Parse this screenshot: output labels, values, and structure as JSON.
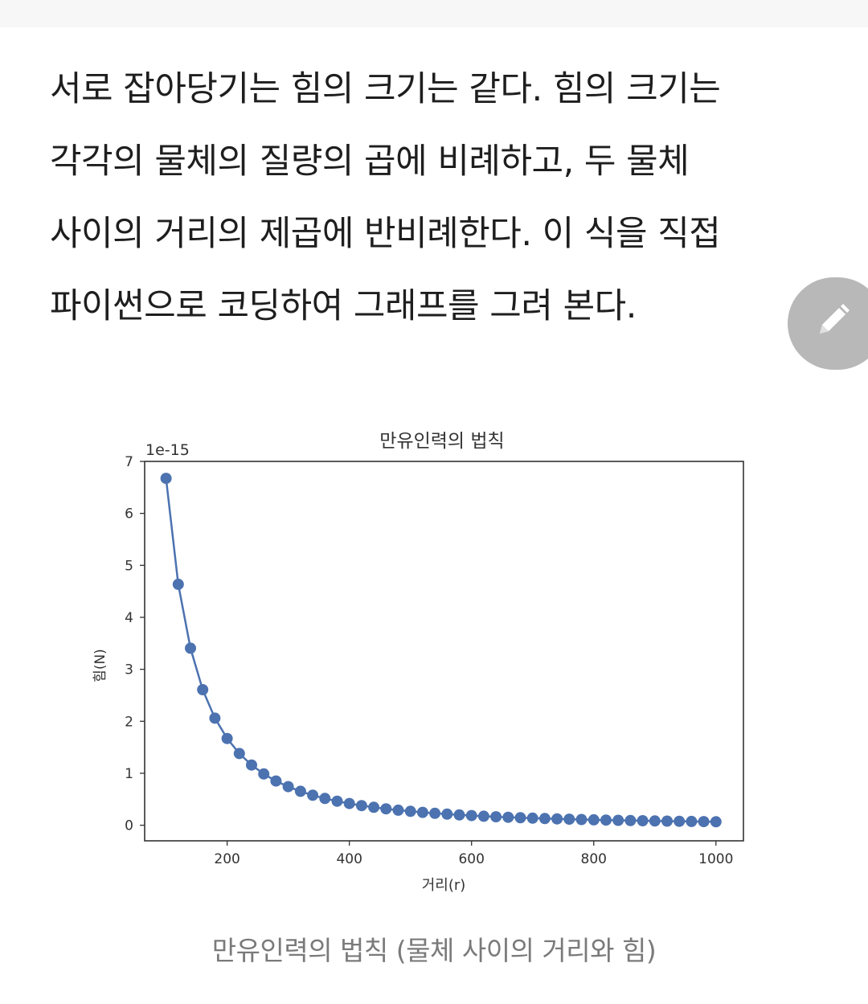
{
  "article": {
    "lines": [
      "서로 잡아당기는 힘의 크기는 같다. 힘의 크기는",
      "각각의 물체의 질량의 곱에 비례하고, 두 물체",
      "사이의 거리의 제곱에 반비례한다. 이 식을 직접",
      "파이썬으로 코딩하여 그래프를 그려 본다."
    ],
    "caption": "만유인력의 법칙 (물체 사이의 거리와 힘)"
  },
  "fab": {
    "icon": "pencil-icon"
  },
  "chart_data": {
    "type": "line",
    "title": "만유인력의 법칙",
    "xlabel": "거리(r)",
    "ylabel": "힘(N)",
    "offset_text": "1e-15",
    "xlim": [
      65,
      1045
    ],
    "ylim": [
      -0.3,
      7
    ],
    "xticks": [
      200,
      400,
      600,
      800,
      1000
    ],
    "yticks": [
      0,
      1,
      2,
      3,
      4,
      5,
      6,
      7
    ],
    "marker": "circle",
    "color": "#4c72b0",
    "grid": false,
    "series": [
      {
        "x": [
          100,
          120,
          140,
          160,
          180,
          200,
          220,
          240,
          260,
          280,
          300,
          320,
          340,
          360,
          380,
          400,
          420,
          440,
          460,
          480,
          500,
          520,
          540,
          560,
          580,
          600,
          620,
          640,
          660,
          680,
          700,
          720,
          740,
          760,
          780,
          800,
          820,
          840,
          860,
          880,
          900,
          920,
          940,
          960,
          980,
          1000
        ],
        "values": [
          6.674,
          4.635,
          3.405,
          2.607,
          2.06,
          1.669,
          1.379,
          1.159,
          0.987,
          0.851,
          0.742,
          0.652,
          0.577,
          0.515,
          0.462,
          0.417,
          0.378,
          0.345,
          0.315,
          0.29,
          0.267,
          0.247,
          0.229,
          0.213,
          0.198,
          0.185,
          0.174,
          0.163,
          0.153,
          0.144,
          0.136,
          0.129,
          0.122,
          0.116,
          0.11,
          0.104,
          0.099,
          0.095,
          0.09,
          0.086,
          0.082,
          0.079,
          0.076,
          0.072,
          0.069,
          0.067
        ]
      }
    ]
  }
}
